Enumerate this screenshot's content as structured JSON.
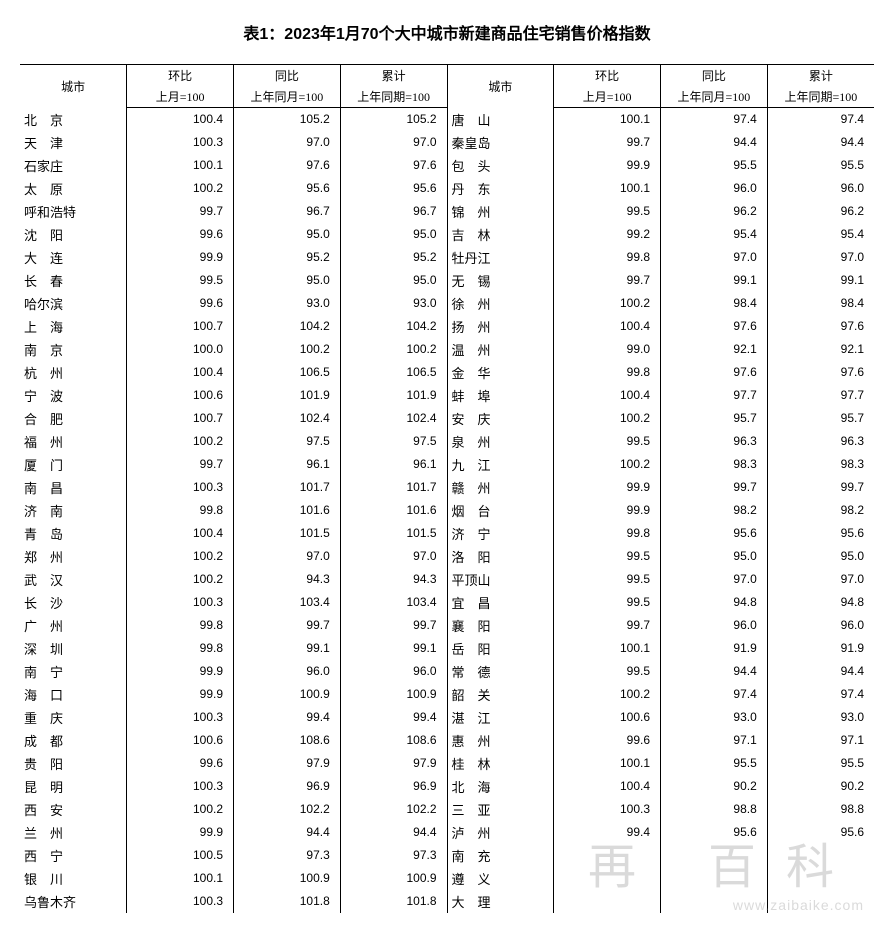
{
  "title": "表1：2023年1月70个大中城市新建商品住宅销售价格指数",
  "headers": {
    "city": "城市",
    "mom": "环比",
    "yoy": "同比",
    "cum": "累计",
    "mom_sub": "上月=100",
    "yoy_sub": "上年同月=100",
    "cum_sub": "上年同期=100"
  },
  "watermark": {
    "big": "再 百科",
    "url": "www.zaibaike.com"
  },
  "rows": [
    {
      "lc": "北　京",
      "l1": "100.4",
      "l2": "105.2",
      "l3": "105.2",
      "rc": "唐　山",
      "r1": "100.1",
      "r2": "97.4",
      "r3": "97.4"
    },
    {
      "lc": "天　津",
      "l1": "100.3",
      "l2": "97.0",
      "l3": "97.0",
      "rc": "秦皇岛",
      "r1": "99.7",
      "r2": "94.4",
      "r3": "94.4"
    },
    {
      "lc": "石家庄",
      "l1": "100.1",
      "l2": "97.6",
      "l3": "97.6",
      "rc": "包　头",
      "r1": "99.9",
      "r2": "95.5",
      "r3": "95.5"
    },
    {
      "lc": "太　原",
      "l1": "100.2",
      "l2": "95.6",
      "l3": "95.6",
      "rc": "丹　东",
      "r1": "100.1",
      "r2": "96.0",
      "r3": "96.0"
    },
    {
      "lc": "呼和浩特",
      "l1": "99.7",
      "l2": "96.7",
      "l3": "96.7",
      "rc": "锦　州",
      "r1": "99.5",
      "r2": "96.2",
      "r3": "96.2"
    },
    {
      "lc": "沈　阳",
      "l1": "99.6",
      "l2": "95.0",
      "l3": "95.0",
      "rc": "吉　林",
      "r1": "99.2",
      "r2": "95.4",
      "r3": "95.4"
    },
    {
      "lc": "大　连",
      "l1": "99.9",
      "l2": "95.2",
      "l3": "95.2",
      "rc": "牡丹江",
      "r1": "99.8",
      "r2": "97.0",
      "r3": "97.0"
    },
    {
      "lc": "长　春",
      "l1": "99.5",
      "l2": "95.0",
      "l3": "95.0",
      "rc": "无　锡",
      "r1": "99.7",
      "r2": "99.1",
      "r3": "99.1"
    },
    {
      "lc": "哈尔滨",
      "l1": "99.6",
      "l2": "93.0",
      "l3": "93.0",
      "rc": "徐　州",
      "r1": "100.2",
      "r2": "98.4",
      "r3": "98.4"
    },
    {
      "lc": "上　海",
      "l1": "100.7",
      "l2": "104.2",
      "l3": "104.2",
      "rc": "扬　州",
      "r1": "100.4",
      "r2": "97.6",
      "r3": "97.6"
    },
    {
      "lc": "南　京",
      "l1": "100.0",
      "l2": "100.2",
      "l3": "100.2",
      "rc": "温　州",
      "r1": "99.0",
      "r2": "92.1",
      "r3": "92.1"
    },
    {
      "lc": "杭　州",
      "l1": "100.4",
      "l2": "106.5",
      "l3": "106.5",
      "rc": "金　华",
      "r1": "99.8",
      "r2": "97.6",
      "r3": "97.6"
    },
    {
      "lc": "宁　波",
      "l1": "100.6",
      "l2": "101.9",
      "l3": "101.9",
      "rc": "蚌　埠",
      "r1": "100.4",
      "r2": "97.7",
      "r3": "97.7"
    },
    {
      "lc": "合　肥",
      "l1": "100.7",
      "l2": "102.4",
      "l3": "102.4",
      "rc": "安　庆",
      "r1": "100.2",
      "r2": "95.7",
      "r3": "95.7"
    },
    {
      "lc": "福　州",
      "l1": "100.2",
      "l2": "97.5",
      "l3": "97.5",
      "rc": "泉　州",
      "r1": "99.5",
      "r2": "96.3",
      "r3": "96.3"
    },
    {
      "lc": "厦　门",
      "l1": "99.7",
      "l2": "96.1",
      "l3": "96.1",
      "rc": "九　江",
      "r1": "100.2",
      "r2": "98.3",
      "r3": "98.3"
    },
    {
      "lc": "南　昌",
      "l1": "100.3",
      "l2": "101.7",
      "l3": "101.7",
      "rc": "赣　州",
      "r1": "99.9",
      "r2": "99.7",
      "r3": "99.7"
    },
    {
      "lc": "济　南",
      "l1": "99.8",
      "l2": "101.6",
      "l3": "101.6",
      "rc": "烟　台",
      "r1": "99.9",
      "r2": "98.2",
      "r3": "98.2"
    },
    {
      "lc": "青　岛",
      "l1": "100.4",
      "l2": "101.5",
      "l3": "101.5",
      "rc": "济　宁",
      "r1": "99.8",
      "r2": "95.6",
      "r3": "95.6"
    },
    {
      "lc": "郑　州",
      "l1": "100.2",
      "l2": "97.0",
      "l3": "97.0",
      "rc": "洛　阳",
      "r1": "99.5",
      "r2": "95.0",
      "r3": "95.0"
    },
    {
      "lc": "武　汉",
      "l1": "100.2",
      "l2": "94.3",
      "l3": "94.3",
      "rc": "平顶山",
      "r1": "99.5",
      "r2": "97.0",
      "r3": "97.0"
    },
    {
      "lc": "长　沙",
      "l1": "100.3",
      "l2": "103.4",
      "l3": "103.4",
      "rc": "宜　昌",
      "r1": "99.5",
      "r2": "94.8",
      "r3": "94.8"
    },
    {
      "lc": "广　州",
      "l1": "99.8",
      "l2": "99.7",
      "l3": "99.7",
      "rc": "襄　阳",
      "r1": "99.7",
      "r2": "96.0",
      "r3": "96.0"
    },
    {
      "lc": "深　圳",
      "l1": "99.8",
      "l2": "99.1",
      "l3": "99.1",
      "rc": "岳　阳",
      "r1": "100.1",
      "r2": "91.9",
      "r3": "91.9"
    },
    {
      "lc": "南　宁",
      "l1": "99.9",
      "l2": "96.0",
      "l3": "96.0",
      "rc": "常　德",
      "r1": "99.5",
      "r2": "94.4",
      "r3": "94.4"
    },
    {
      "lc": "海　口",
      "l1": "99.9",
      "l2": "100.9",
      "l3": "100.9",
      "rc": "韶　关",
      "r1": "100.2",
      "r2": "97.4",
      "r3": "97.4"
    },
    {
      "lc": "重　庆",
      "l1": "100.3",
      "l2": "99.4",
      "l3": "99.4",
      "rc": "湛　江",
      "r1": "100.6",
      "r2": "93.0",
      "r3": "93.0"
    },
    {
      "lc": "成　都",
      "l1": "100.6",
      "l2": "108.6",
      "l3": "108.6",
      "rc": "惠　州",
      "r1": "99.6",
      "r2": "97.1",
      "r3": "97.1"
    },
    {
      "lc": "贵　阳",
      "l1": "99.6",
      "l2": "97.9",
      "l3": "97.9",
      "rc": "桂　林",
      "r1": "100.1",
      "r2": "95.5",
      "r3": "95.5"
    },
    {
      "lc": "昆　明",
      "l1": "100.3",
      "l2": "96.9",
      "l3": "96.9",
      "rc": "北　海",
      "r1": "100.4",
      "r2": "90.2",
      "r3": "90.2"
    },
    {
      "lc": "西　安",
      "l1": "100.2",
      "l2": "102.2",
      "l3": "102.2",
      "rc": "三　亚",
      "r1": "100.3",
      "r2": "98.8",
      "r3": "98.8"
    },
    {
      "lc": "兰　州",
      "l1": "99.9",
      "l2": "94.4",
      "l3": "94.4",
      "rc": "泸　州",
      "r1": "99.4",
      "r2": "95.6",
      "r3": "95.6"
    },
    {
      "lc": "西　宁",
      "l1": "100.5",
      "l2": "97.3",
      "l3": "97.3",
      "rc": "南　充",
      "r1": "",
      "r2": "",
      "r3": ""
    },
    {
      "lc": "银　川",
      "l1": "100.1",
      "l2": "100.9",
      "l3": "100.9",
      "rc": "遵　义",
      "r1": "",
      "r2": "",
      "r3": ""
    },
    {
      "lc": "乌鲁木齐",
      "l1": "100.3",
      "l2": "101.8",
      "l3": "101.8",
      "rc": "大　理",
      "r1": "",
      "r2": "",
      "r3": ""
    }
  ]
}
